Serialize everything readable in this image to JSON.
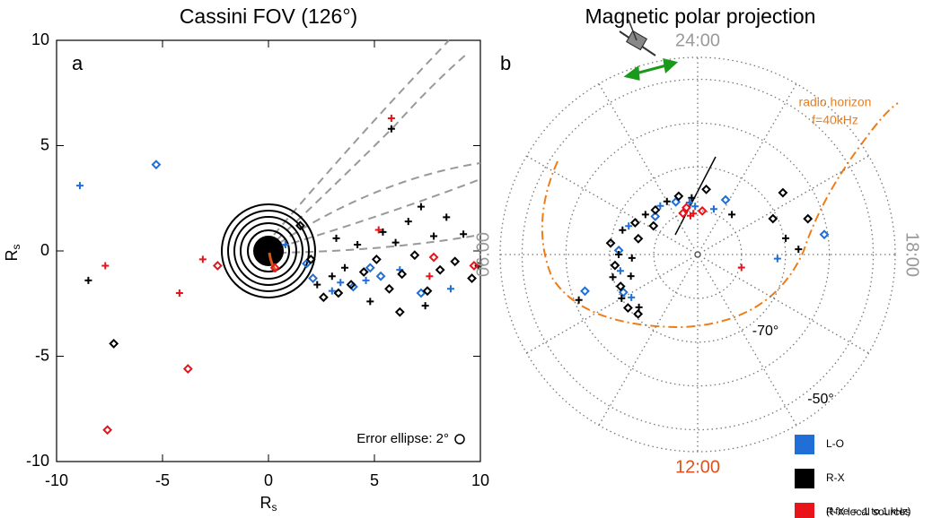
{
  "chart_data": [
    {
      "type": "scatter",
      "title": "Cassini FOV (126°)",
      "panel": "a",
      "xlabel": "R",
      "xlabel_sub": "s",
      "ylabel": "R",
      "ylabel_sub": "s",
      "xlim": [
        -10,
        10
      ],
      "ylim": [
        -10,
        10
      ],
      "xticks": [
        -10,
        -5,
        0,
        5,
        10
      ],
      "yticks": [
        -10,
        -5,
        0,
        5,
        10
      ],
      "annotation": "Error ellipse: 2°",
      "legend_note": "(f-fce = -1 to 1 kHz)",
      "series": [
        {
          "name": "L-O",
          "color": "#1f6fd6",
          "x": [
            -8.9,
            -5.3,
            0.8,
            2.1,
            3.4,
            4.0,
            4.6,
            5.3,
            6.2,
            7.2,
            8.6,
            4.8,
            3.0,
            1.8
          ],
          "values": [
            3.1,
            4.1,
            0.3,
            -1.3,
            -1.5,
            -1.7,
            -1.4,
            -1.2,
            -0.9,
            -2.0,
            -1.8,
            -0.8,
            -1.9,
            -0.6
          ]
        },
        {
          "name": "R-X",
          "color": "#000000",
          "x": [
            2.3,
            2.6,
            3.0,
            3.3,
            3.6,
            3.9,
            4.2,
            4.5,
            4.8,
            5.1,
            5.4,
            5.7,
            6.0,
            6.3,
            6.6,
            6.9,
            7.2,
            7.5,
            7.8,
            8.1,
            8.4,
            8.8,
            9.2,
            9.6,
            7.4,
            2.0,
            3.2,
            1.5,
            -8.5,
            -7.3,
            5.8,
            6.2,
            9.9
          ],
          "values": [
            -1.6,
            -2.2,
            -1.2,
            -2.0,
            -0.8,
            -1.6,
            0.3,
            -1.0,
            -2.4,
            -0.4,
            0.9,
            -1.8,
            0.4,
            -1.1,
            1.4,
            -0.2,
            2.1,
            -1.9,
            0.7,
            -0.9,
            1.6,
            -0.5,
            0.8,
            -1.3,
            -2.6,
            -0.4,
            0.6,
            1.2,
            -1.4,
            -4.4,
            5.8,
            -2.9,
            -0.7
          ]
        },
        {
          "name": "R-X local sources",
          "color": "#e8141a",
          "x": [
            -7.7,
            -7.6,
            -4.2,
            -3.8,
            -3.1,
            -2.4,
            5.8,
            9.7,
            7.6,
            7.8,
            5.2,
            0.3
          ],
          "values": [
            -0.7,
            -8.5,
            -2.0,
            -5.6,
            -0.4,
            -0.7,
            6.3,
            -0.7,
            -1.2,
            -0.3,
            1.0,
            -0.8
          ]
        }
      ]
    },
    {
      "type": "polar",
      "title": "Magnetic polar projection",
      "panel": "b",
      "rlim": [
        -90,
        -45
      ],
      "rgrid": [
        -80,
        -70,
        -60,
        -50,
        -45
      ],
      "rticks": [
        {
          "value": -70,
          "label": "-70°"
        },
        {
          "value": -50,
          "label": "-50°"
        }
      ],
      "thetagrid": [
        0,
        2,
        4,
        6,
        8,
        10,
        12,
        14,
        16,
        18,
        20,
        22
      ],
      "thetaticks": [
        {
          "value": 0,
          "label": "24:00"
        },
        {
          "value": 6,
          "label": "06:00"
        },
        {
          "value": 12,
          "label": "12:00"
        },
        {
          "value": 18,
          "label": "18:00"
        }
      ],
      "annotation": [
        "radio horizon",
        "f=40kHz"
      ],
      "series": [
        {
          "color": "#1f6fd6",
          "x": [
            0.6,
            1.5,
            2.5,
            3.2,
            4.5,
            5.8,
            6.8,
            7.8,
            8.2,
            18.6,
            17.8,
            7.2,
            22.7,
            22.2,
            0.2
          ],
          "values": [
            -78,
            -77,
            -76,
            -77,
            -73,
            -72,
            -72,
            -71,
            -72,
            -60.8,
            -71.8,
            -63,
            -79,
            -76,
            -79
          ]
        },
        {
          "color": "#000000",
          "x": [
            0.4,
            1.2,
            2.0,
            2.9,
            3.5,
            4.2,
            4.8,
            5.5,
            6.0,
            6.5,
            7.0,
            7.5,
            8.0,
            8.5,
            6.2,
            5.0,
            7.2,
            3.8,
            8.8,
            9.0,
            7.4,
            19.7,
            18.7,
            19.2,
            21.3,
            20.4,
            18.2,
            23.5
          ],
          "values": [
            -77,
            -76,
            -76,
            -76,
            -75,
            -74,
            -72,
            -70,
            -72,
            -71,
            -70,
            -71,
            -70,
            -70,
            -75,
            -76,
            -74,
            -78,
            -72,
            -70.8,
            -61,
            -71,
            -69.6,
            -63.6,
            -78,
            -66,
            -67,
            -75
          ]
        },
        {
          "color": "#e8141a",
          "x": [
            16.9,
            0.9,
            0.4,
            1.3,
            0.7,
            23.6
          ],
          "values": [
            -79.6,
            -79,
            -80.6,
            -80,
            -81,
            -80
          ]
        }
      ]
    }
  ]
}
